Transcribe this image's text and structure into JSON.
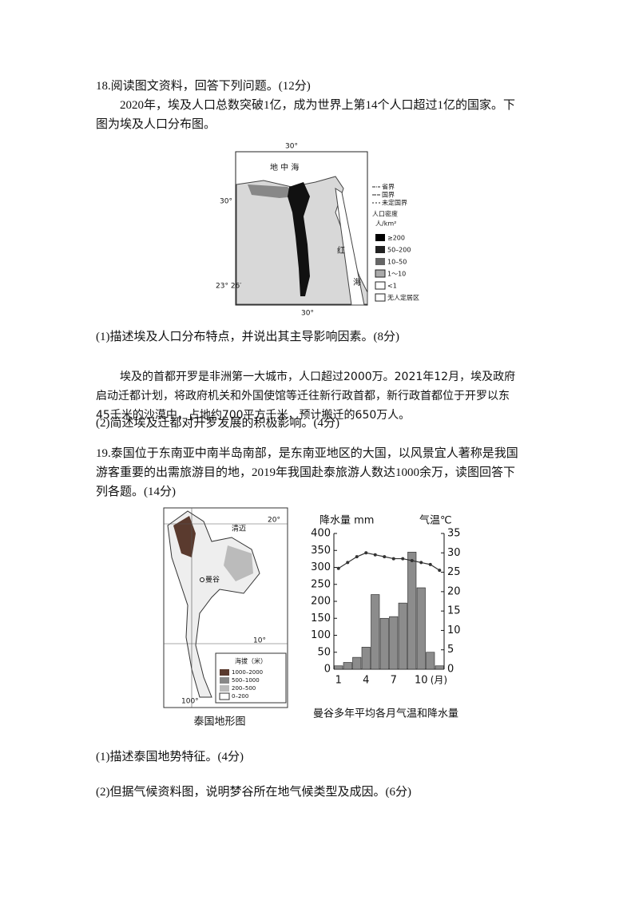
{
  "q18": {
    "title": "18.阅读图文资料，回答下列问题。(12分)",
    "intro": "2020年，埃及人口总数突破1亿，成为世界上第14个人口超过1亿的国家。下图为埃及人口分布图。",
    "map": {
      "lon_top": "30°",
      "lat_left": "30°",
      "sea": "地 中 海",
      "red_sea_1": "红",
      "red_sea_2": "海",
      "tropic": "23° 26′",
      "lon_bottom": "30°",
      "legend_lines": [
        "省界",
        "国界",
        "未定国界"
      ],
      "legend_title": "人口密度",
      "legend_unit": "人/km²",
      "legend_items": [
        "≥200",
        "50–200",
        "10–50",
        "1～10",
        "<1",
        "无人定居区"
      ]
    },
    "q1": "(1)描述埃及人口分布特点，并说出其主导影响因素。(8分)",
    "passage": "埃及的首都开罗是非洲第一大城市，人口超过2000万。2021年12月，埃及政府启动迁都计划，将政府机关和外国使馆等迁往新行政首都，新行政首都位于开罗以东45千米的沙漠中，占地约700平方千米，预计搬迁的650万人。",
    "q2": "(2)简述埃及迁都对开罗发展的积极影响。(4分)"
  },
  "q19": {
    "title": "19.泰国位于东南亚中南半岛南部，是东南亚地区的大国，以风景宜人著称是我国游客重要的出需旅游目的地，2019年我国赴泰旅游人数达1000余万，读图回答下列各题。(14分)",
    "map": {
      "lat_20": "20°",
      "city_1": "清迈",
      "city_2": "曼谷",
      "lat_10": "10°",
      "lon_100": "100°",
      "legend_title": "海拔（米）",
      "legend_items": [
        "1000–2000",
        "500–1000",
        "200–500",
        "0–200"
      ],
      "caption": "泰国地形图"
    },
    "q1": "(1)描述泰国地势特征。(4分)",
    "q2": "(2)但据气候资料图，说明梦谷所在地气候类型及成因。(6分)"
  },
  "chart_data": {
    "type": "bar-line",
    "title": "曼谷多年平均各月气温和降水量",
    "y_label": "降水量 mm",
    "y2_label": "气温℃",
    "x_unit": "(月)",
    "categories": [
      "1",
      null,
      null,
      "4",
      null,
      null,
      "7",
      null,
      null,
      "10",
      null,
      null
    ],
    "series": [
      {
        "name": "降水量",
        "type": "bar",
        "color": "#8c8c8c",
        "values": [
          10,
          20,
          35,
          65,
          220,
          150,
          155,
          195,
          345,
          240,
          50,
          10
        ]
      },
      {
        "name": "气温",
        "type": "line",
        "axis": "y2",
        "color": "#333333",
        "values": [
          26,
          27.5,
          29,
          30,
          29.5,
          29,
          28.5,
          28.5,
          28,
          27.5,
          27,
          25.5
        ]
      }
    ],
    "ylim": [
      0,
      400
    ],
    "yticks": [
      0,
      50,
      100,
      150,
      200,
      250,
      300,
      350,
      400
    ],
    "y2lim": [
      0,
      35
    ],
    "y2ticks": [
      0,
      5,
      10,
      15,
      20,
      25,
      30,
      35
    ]
  }
}
